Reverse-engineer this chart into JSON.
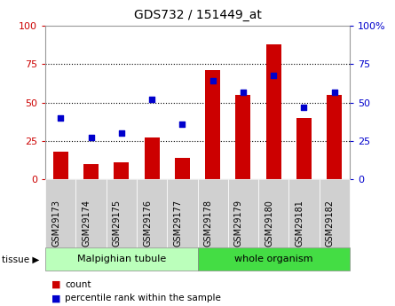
{
  "title": "GDS732 / 151449_at",
  "categories": [
    "GSM29173",
    "GSM29174",
    "GSM29175",
    "GSM29176",
    "GSM29177",
    "GSM29178",
    "GSM29179",
    "GSM29180",
    "GSM29181",
    "GSM29182"
  ],
  "count_values": [
    18,
    10,
    11,
    27,
    14,
    71,
    55,
    88,
    40,
    55
  ],
  "percentile_values": [
    40,
    27,
    30,
    52,
    36,
    64,
    57,
    68,
    47,
    57
  ],
  "bar_color": "#cc0000",
  "square_color": "#0000cc",
  "ylim": [
    0,
    100
  ],
  "yticks": [
    0,
    25,
    50,
    75,
    100
  ],
  "tissue_groups": [
    {
      "label": "Malpighian tubule",
      "indices": [
        0,
        1,
        2,
        3,
        4
      ],
      "color": "#bbffbb"
    },
    {
      "label": "whole organism",
      "indices": [
        5,
        6,
        7,
        8,
        9
      ],
      "color": "#44dd44"
    }
  ],
  "tissue_label": "tissue",
  "legend_count": "count",
  "legend_percentile": "percentile rank within the sample",
  "left_tick_color": "#cc0000",
  "right_tick_color": "#0000cc",
  "grid_color": "black",
  "tick_bg_color": "#d0d0d0",
  "border_color": "#999999"
}
